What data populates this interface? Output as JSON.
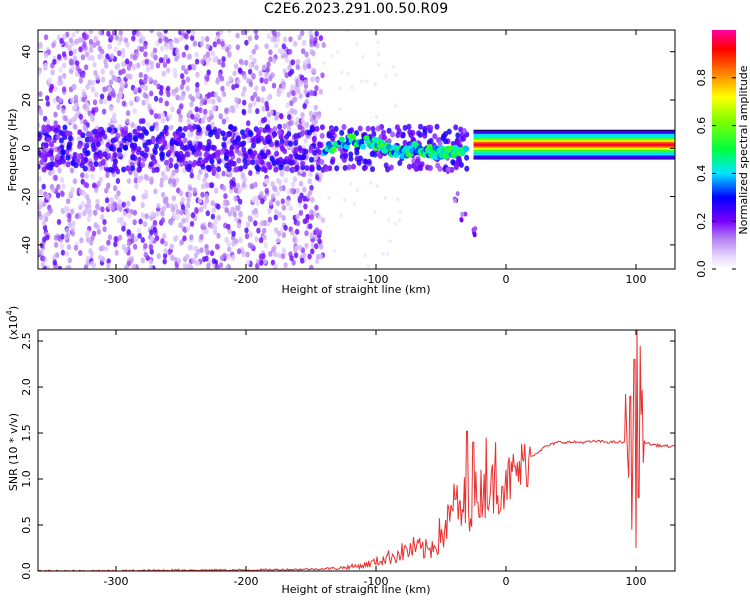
{
  "title": "C2E6.2023.291.00.50.R09",
  "colors": {
    "snr_line": "#e83030",
    "axis": "#000000",
    "colormap": [
      "#ffffff",
      "#e8d8ff",
      "#b07cf0",
      "#7a00ff",
      "#0000ff",
      "#00e5ff",
      "#00ff00",
      "#ffff00",
      "#ff8000",
      "#ff0000",
      "#ff00a0"
    ]
  },
  "chart_data": [
    {
      "type": "heatmap",
      "xlabel": "Height of straight line (km)",
      "ylabel": "Frequency (Hz)",
      "xlim": [
        -360,
        130
      ],
      "ylim": [
        -50,
        49
      ],
      "xticks": [
        -300,
        -200,
        -100,
        0,
        100
      ],
      "xtick_labels": [
        "-300",
        "-200",
        "-100",
        "0",
        "100"
      ],
      "yticks": [
        -40,
        -20,
        0,
        20,
        40
      ],
      "ytick_labels": [
        "-40",
        "-20",
        "0",
        "20",
        "40"
      ],
      "colorbar": {
        "label": "Normalized spectral amplitude",
        "range": [
          0.0,
          1.0
        ],
        "ticks": [
          0.0,
          0.2,
          0.4,
          0.6,
          0.8
        ],
        "tick_labels": [
          "0.0",
          "0.2",
          "0.4",
          "0.6",
          "0.8"
        ]
      },
      "features": [
        {
          "name": "noise-field",
          "x_range": [
            -360,
            -140
          ],
          "freq_range": [
            -50,
            49
          ],
          "amplitude": 0.05
        },
        {
          "name": "signal-band-noisy",
          "x_range": [
            -360,
            -30
          ],
          "center_freq": 0,
          "amplitude": 0.1
        },
        {
          "name": "strong-trace",
          "points": [
            [
              -140,
              0
            ],
            [
              -120,
              3
            ],
            [
              -100,
              2
            ],
            [
              -90,
              -1
            ],
            [
              -80,
              -2
            ],
            [
              -70,
              0
            ],
            [
              -60,
              -1
            ],
            [
              -50,
              -2
            ],
            [
              -40,
              -1
            ],
            [
              -30,
              0
            ]
          ],
          "amplitude": 0.4
        },
        {
          "name": "descending-branch",
          "points": [
            [
              -45,
              -10
            ],
            [
              -38,
              -20
            ],
            [
              -33,
              -28
            ],
            [
              -25,
              -35
            ]
          ],
          "amplitude": 0.08
        },
        {
          "name": "steady-carrier",
          "x_range": [
            -25,
            130
          ],
          "freq": 1.5,
          "amplitude": 0.95
        }
      ]
    },
    {
      "type": "line",
      "xlabel": "Height of straight line (km)",
      "ylabel": "SNR (10 * v/v)",
      "y_scale_label": "(x10",
      "y_scale_exponent": "4",
      "xlim": [
        -360,
        130
      ],
      "ylim": [
        0,
        2.62
      ],
      "xticks": [
        -300,
        -200,
        -100,
        0,
        100
      ],
      "xtick_labels": [
        "-300",
        "-200",
        "-100",
        "0",
        "100"
      ],
      "yticks": [
        0.0,
        0.5,
        1.0,
        1.5,
        2.0,
        2.5
      ],
      "ytick_labels": [
        "0.0",
        "0.5",
        "1.0",
        "1.5",
        "2.0",
        "2.5"
      ],
      "series": [
        {
          "x": [
            -360,
            -300,
            -250,
            -200,
            -150,
            -130,
            -110,
            -100,
            -90,
            -80,
            -70,
            -60,
            -50,
            -40,
            -30,
            -20,
            -10,
            0,
            10,
            20,
            30,
            40,
            50,
            60,
            70,
            80,
            90,
            95,
            100,
            105,
            110,
            120,
            130
          ],
          "values": [
            0.0,
            0.0,
            0.01,
            0.01,
            0.02,
            0.03,
            0.06,
            0.1,
            0.15,
            0.2,
            0.25,
            0.22,
            0.4,
            0.6,
            0.7,
            0.85,
            0.9,
            0.95,
            1.1,
            1.25,
            1.35,
            1.4,
            1.4,
            1.4,
            1.41,
            1.4,
            1.4,
            1.4,
            1.4,
            1.42,
            1.38,
            1.36,
            1.35
          ],
          "spikes": [
            [
              -40,
              0.95
            ],
            [
              -30,
              1.52
            ],
            [
              -25,
              1.4
            ],
            [
              -15,
              1.45
            ],
            [
              -8,
              1.4
            ],
            [
              0,
              1.1
            ],
            [
              93,
              1.55
            ],
            [
              96,
              1.9
            ],
            [
              99,
              2.3
            ],
            [
              101,
              2.62
            ],
            [
              103,
              2.45
            ],
            [
              104,
              1.7
            ]
          ],
          "dips": [
            [
              97,
              0.45
            ],
            [
              100,
              0.25
            ],
            [
              102,
              0.8
            ]
          ]
        }
      ]
    }
  ]
}
